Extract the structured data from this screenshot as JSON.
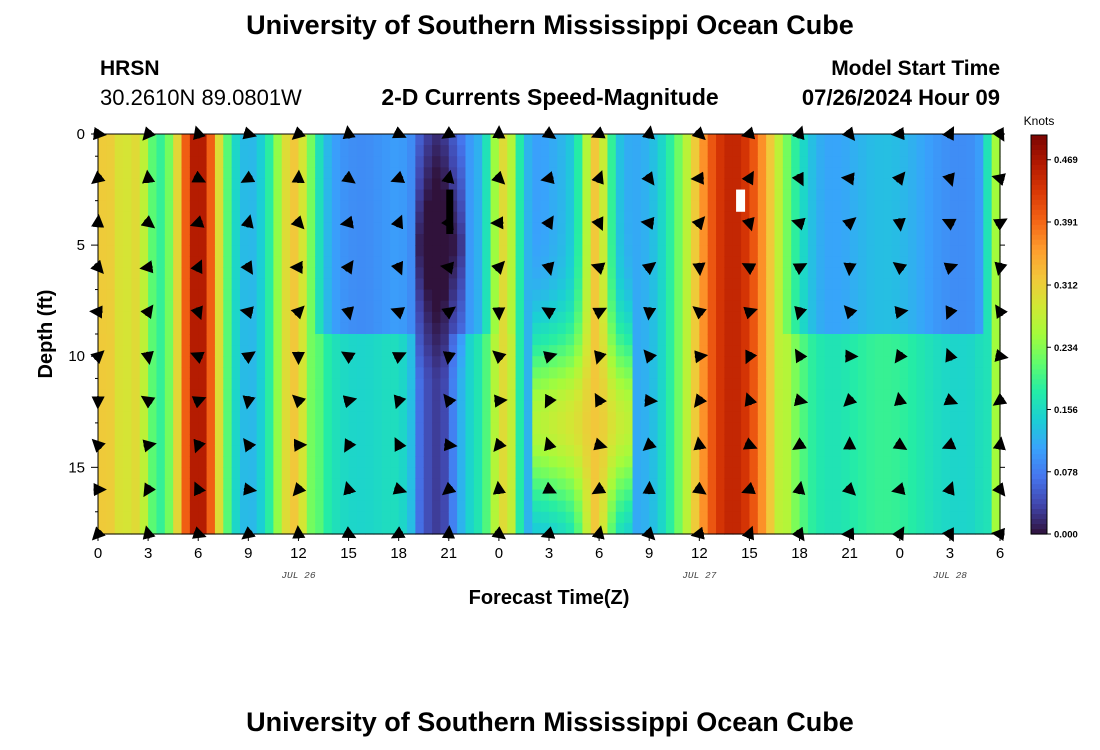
{
  "header": {
    "title": "University of Southern Mississippi Ocean Cube",
    "footer_title": "University of Southern Mississippi Ocean Cube",
    "station": "HRSN",
    "coords": "30.2610N  89.0801W",
    "subtitle": "2-D Currents Speed-Magnitude",
    "model_label": "Model Start Time",
    "model_time": "07/26/2024 Hour 09"
  },
  "chart_data": {
    "type": "heatmap",
    "title": "2-D Currents Speed-Magnitude",
    "xlabel": "Forecast Time(Z)",
    "ylabel": "Depth (ft)",
    "x_range_hours": [
      0,
      54
    ],
    "y_range_ft": [
      0,
      18
    ],
    "x_ticks": [
      "0",
      "3",
      "6",
      "9",
      "12",
      "15",
      "18",
      "21",
      "0",
      "3",
      "6",
      "9",
      "12",
      "15",
      "18",
      "21",
      "0",
      "3",
      "6"
    ],
    "y_ticks": [
      "0",
      "5",
      "10",
      "15"
    ],
    "date_labels": [
      {
        "label": "JUL 26",
        "hour": 12
      },
      {
        "label": "JUL 27",
        "hour": 36
      },
      {
        "label": "JUL 28",
        "hour": 51
      }
    ],
    "colorbar": {
      "unit": "Knots",
      "range": [
        0,
        0.5
      ],
      "ticks": [
        "0.000",
        "0.078",
        "0.156",
        "0.234",
        "0.312",
        "0.391",
        "0.469"
      ],
      "colors": [
        "#30123b",
        "#4145ab",
        "#4675ed",
        "#39a2fc",
        "#1bcfd4",
        "#24eca6",
        "#61fc6c",
        "#a4fc3b",
        "#d1e834",
        "#f3c63a",
        "#fe9b2d",
        "#f36315",
        "#d93806",
        "#b11901",
        "#7a0402"
      ]
    },
    "bands": [
      {
        "center": 0.5,
        "width": 1.8,
        "value": 0.32
      },
      {
        "center": 2.2,
        "width": 1.0,
        "value": 0.3
      },
      {
        "center": 6.0,
        "width": 1.6,
        "value": 0.47
      },
      {
        "center": 11.7,
        "width": 1.3,
        "value": 0.32
      },
      {
        "center": 20.3,
        "width": 1.5,
        "value": 0.03
      },
      {
        "center": 24.3,
        "width": 1.0,
        "value": 0.3
      },
      {
        "center": 29.8,
        "width": 0.9,
        "value": 0.32
      },
      {
        "center": 38.0,
        "width": 3.2,
        "value": 0.45
      },
      {
        "center": 53.8,
        "width": 0.6,
        "value": 0.25
      }
    ],
    "vector_note": "Arrows show current direction at each depth/time step"
  }
}
